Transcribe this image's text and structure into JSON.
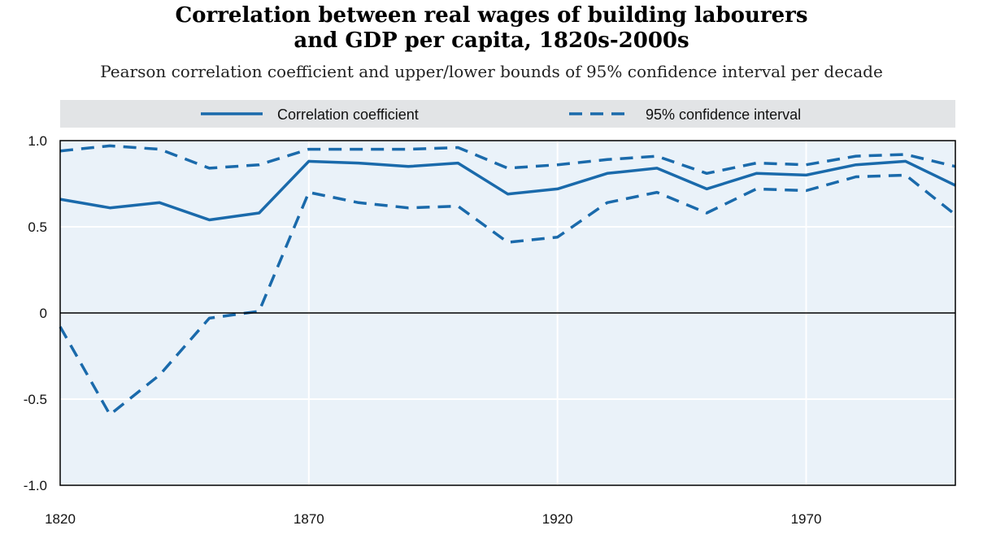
{
  "chart_data": {
    "type": "line",
    "title_lines": [
      "Correlation between real wages of building labourers",
      "and GDP per capita, 1820s-2000s"
    ],
    "subtitle": "Pearson correlation coefficient and upper/lower bounds of 95% confidence interval per decade",
    "x": [
      1820,
      1830,
      1840,
      1850,
      1860,
      1870,
      1880,
      1890,
      1900,
      1910,
      1920,
      1930,
      1940,
      1950,
      1960,
      1970,
      1980,
      1990,
      2000
    ],
    "xticks": [
      1820,
      1870,
      1920,
      1970
    ],
    "xlim": [
      1820,
      2000
    ],
    "ylim": [
      -1.0,
      1.0
    ],
    "yticks": [
      {
        "value": 1.0,
        "label": "1.0"
      },
      {
        "value": 0.5,
        "label": "0.5"
      },
      {
        "value": 0,
        "label": "0"
      },
      {
        "value": -0.5,
        "label": "-0.5"
      },
      {
        "value": -1.0,
        "label": "-1.0"
      }
    ],
    "grid": true,
    "legend_position": "top",
    "series": [
      {
        "name": "Correlation coefficient",
        "style": "solid",
        "color": "#1a6aab",
        "values": [
          0.66,
          0.61,
          0.64,
          0.54,
          0.58,
          0.88,
          0.87,
          0.85,
          0.87,
          0.69,
          0.72,
          0.81,
          0.84,
          0.72,
          0.81,
          0.8,
          0.86,
          0.88,
          0.74
        ]
      },
      {
        "name": "95% confidence interval",
        "style": "dashed",
        "color": "#1a6aab",
        "values": [
          0.94,
          0.97,
          0.95,
          0.84,
          0.86,
          0.95,
          0.95,
          0.95,
          0.96,
          0.84,
          0.86,
          0.89,
          0.91,
          0.81,
          0.87,
          0.86,
          0.91,
          0.92,
          0.85
        ]
      },
      {
        "name": "",
        "style": "dashed",
        "color": "#1a6aab",
        "values": [
          -0.08,
          -0.59,
          -0.36,
          -0.03,
          0.01,
          0.7,
          0.64,
          0.61,
          0.62,
          0.41,
          0.44,
          0.64,
          0.7,
          0.58,
          0.72,
          0.71,
          0.79,
          0.8,
          0.57
        ]
      }
    ]
  },
  "colors": {
    "plot_bg": "#eaf2f9",
    "legend_bg": "#e2e4e6",
    "grid": "#ffffff",
    "axis": "#000000",
    "line": "#1a6aab"
  }
}
